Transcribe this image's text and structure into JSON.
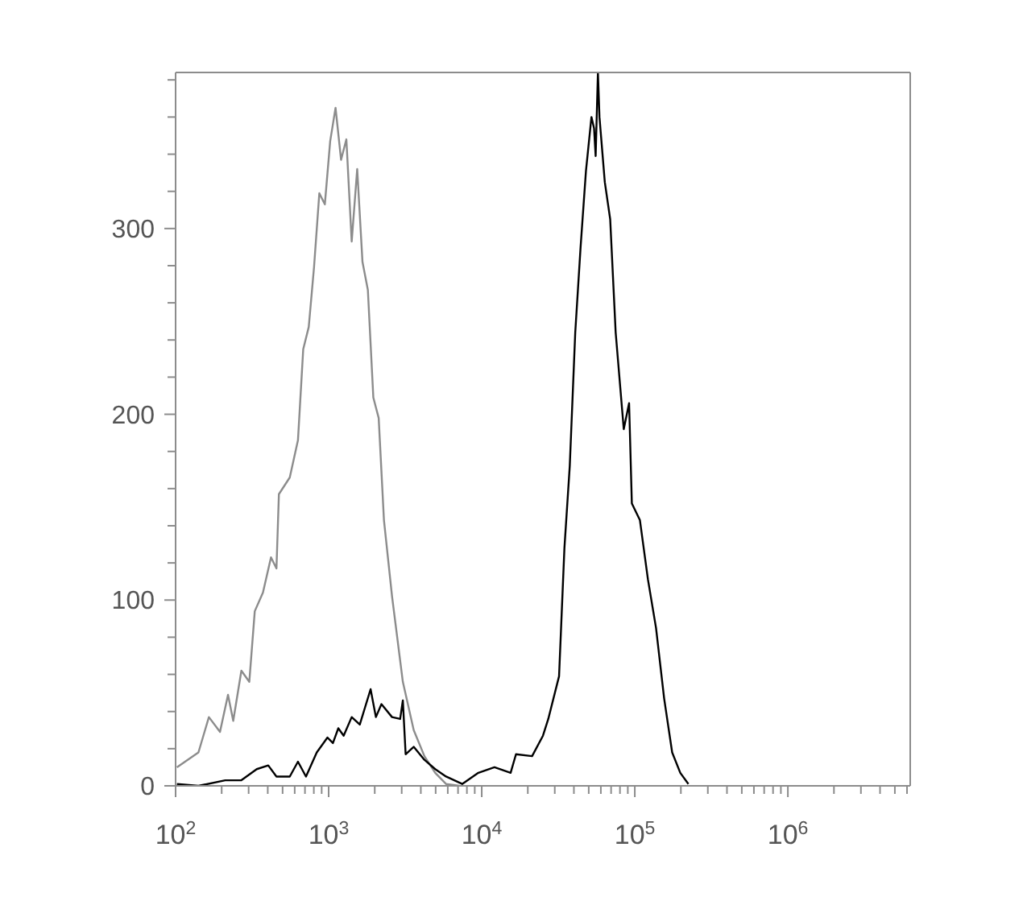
{
  "chart_data": {
    "type": "line",
    "log": "x",
    "marker": "none",
    "line_style": "solid",
    "xlim": [
      100,
      6300000
    ],
    "xticks": [
      {
        "value": 100,
        "label": "10$^{2}$"
      },
      {
        "value": 200,
        "label": null
      },
      {
        "value": 300,
        "label": null
      },
      {
        "value": 400,
        "label": null
      },
      {
        "value": 500,
        "label": null
      },
      {
        "value": 600,
        "label": null
      },
      {
        "value": 700,
        "label": null
      },
      {
        "value": 800,
        "label": null
      },
      {
        "value": 900,
        "label": null
      },
      {
        "value": 1000,
        "label": "10$^{3}$"
      },
      {
        "value": 2000,
        "label": null
      },
      {
        "value": 3000,
        "label": null
      },
      {
        "value": 4000,
        "label": null
      },
      {
        "value": 5000,
        "label": null
      },
      {
        "value": 6000,
        "label": null
      },
      {
        "value": 7000,
        "label": null
      },
      {
        "value": 8000,
        "label": null
      },
      {
        "value": 9000,
        "label": null
      },
      {
        "value": 10000,
        "label": "10$^{4}$"
      },
      {
        "value": 20000,
        "label": null
      },
      {
        "value": 30000,
        "label": null
      },
      {
        "value": 40000,
        "label": null
      },
      {
        "value": 50000,
        "label": null
      },
      {
        "value": 60000,
        "label": null
      },
      {
        "value": 70000,
        "label": null
      },
      {
        "value": 80000,
        "label": null
      },
      {
        "value": 90000,
        "label": null
      },
      {
        "value": 100000,
        "label": "10$^{5}$"
      },
      {
        "value": 200000,
        "label": null
      },
      {
        "value": 300000,
        "label": null
      },
      {
        "value": 400000,
        "label": null
      },
      {
        "value": 500000,
        "label": null
      },
      {
        "value": 600000,
        "label": null
      },
      {
        "value": 700000,
        "label": null
      },
      {
        "value": 800000,
        "label": null
      },
      {
        "value": 900000,
        "label": null
      },
      {
        "value": 1000000,
        "label": "10$^{6}$"
      },
      {
        "value": 2000000,
        "label": null
      },
      {
        "value": 3000000,
        "label": null
      },
      {
        "value": 4000000,
        "label": null
      },
      {
        "value": 5000000,
        "label": null
      },
      {
        "value": 6000000,
        "label": null
      }
    ],
    "ylim": [
      0,
      384
    ],
    "yticks": [
      0,
      {
        "value": 20,
        "label": null
      },
      {
        "value": 40,
        "label": null
      },
      {
        "value": 60,
        "label": null
      },
      {
        "value": 80,
        "label": null
      },
      100,
      {
        "value": 120,
        "label": null
      },
      {
        "value": 140,
        "label": null
      },
      {
        "value": 160,
        "label": null
      },
      {
        "value": 180,
        "label": null
      },
      200,
      {
        "value": 220,
        "label": null
      },
      {
        "value": 240,
        "label": null
      },
      {
        "value": 260,
        "label": null
      },
      {
        "value": 280,
        "label": null
      },
      300,
      {
        "value": 320,
        "label": null
      },
      {
        "value": 340,
        "label": null
      },
      {
        "value": 360,
        "label": null
      },
      {
        "value": 380,
        "label": null
      }
    ],
    "series": [
      {
        "color": "#8c8c8c",
        "x": [
          102,
          141,
          165,
          195,
          220,
          238,
          269,
          303,
          329,
          372,
          420,
          456,
          473,
          557,
          630,
          682,
          741,
          802,
          869,
          944,
          1023,
          1109,
          1205,
          1305,
          1414,
          1536,
          1663,
          1803,
          1958,
          2122,
          2297,
          2594,
          3052,
          3594,
          4221,
          4966,
          5845,
          7145
        ],
        "values": [
          10,
          18,
          37,
          29,
          49,
          35,
          62,
          56,
          94,
          104,
          123,
          117,
          157,
          166,
          186,
          235,
          247,
          279,
          319,
          313,
          347,
          365,
          337,
          348,
          293,
          332,
          282,
          267,
          209,
          198,
          143,
          102,
          56,
          30,
          16,
          7,
          1,
          0
        ]
      },
      {
        "color": "#000000",
        "x": [
          102,
          141,
          211,
          269,
          339,
          403,
          456,
          557,
          630,
          711,
          836,
          982,
          1066,
          1156,
          1253,
          1414,
          1597,
          1879,
          2035,
          2212,
          2594,
          2931,
          3052,
          3183,
          3594,
          4221,
          4966,
          5845,
          7453,
          9506,
          12113,
          15440,
          16740,
          21330,
          25120,
          27210,
          32000,
          34690,
          37580,
          40820,
          44240,
          47960,
          52090,
          54170,
          55490,
          57420,
          58770,
          63680,
          69050,
          74990,
          84690,
          91770,
          95650,
          108000,
          121900,
          137600,
          155500,
          175400,
          198200,
          223900
        ],
        "values": [
          1,
          0,
          3,
          3,
          9,
          11,
          5,
          5,
          13,
          5,
          18,
          26,
          23,
          31,
          27,
          37,
          33,
          52,
          37,
          44,
          37,
          36,
          46,
          17,
          21,
          14,
          9,
          5,
          1,
          7,
          10,
          7,
          17,
          16,
          27,
          36,
          59,
          128,
          172,
          244,
          290,
          331,
          360,
          354,
          339,
          384,
          360,
          325,
          305,
          244,
          192,
          206,
          152,
          143,
          111,
          85,
          47,
          18,
          7,
          1
        ]
      }
    ]
  }
}
